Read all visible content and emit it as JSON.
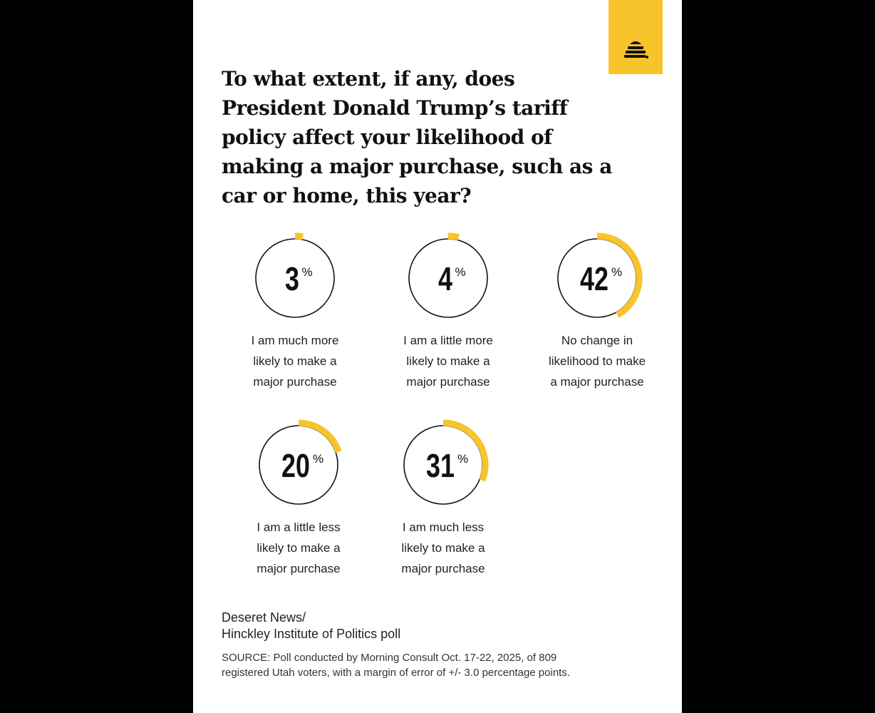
{
  "brand": {
    "accent": "#f7c42b",
    "logo_icon": "beehive-icon"
  },
  "title": "To what extent, if any, does President Donald Trump’s tariff policy affect your likelihood of making a major purchase, such as a car or home, this year?",
  "chart_data": {
    "type": "pie",
    "unit": "%",
    "categories": [
      "I am much more likely to make a major purchase",
      "I am a little more likely to make a major purchase",
      "No change in likelihood to make a major purchase",
      "I am a little less likely to make a major purchase",
      "I am much less likely to make a major purchase"
    ],
    "values": [
      3,
      4,
      42,
      20,
      31
    ],
    "items": [
      {
        "value": 3,
        "label_lines": [
          "I am much more",
          "likely to make a",
          "major purchase"
        ]
      },
      {
        "value": 4,
        "label_lines": [
          "I am a little more",
          "likely to make a",
          "major purchase"
        ]
      },
      {
        "value": 42,
        "label_lines": [
          "No change in",
          "likelihood to make",
          "a major purchase"
        ]
      },
      {
        "value": 20,
        "label_lines": [
          "I am a little less",
          "likely to make a",
          "major purchase"
        ]
      },
      {
        "value": 31,
        "label_lines": [
          "I am much less",
          "likely to make a",
          "major purchase"
        ]
      }
    ]
  },
  "credit": {
    "line1": "Deseret News/",
    "line2": "Hinckley Institute of Politics poll"
  },
  "source": {
    "line1": "SOURCE: Poll conducted by Morning Consult Oct. 17-22, 2025, of 809",
    "line2": "registered Utah voters, with a margin of error of +/- 3.0 percentage points."
  }
}
